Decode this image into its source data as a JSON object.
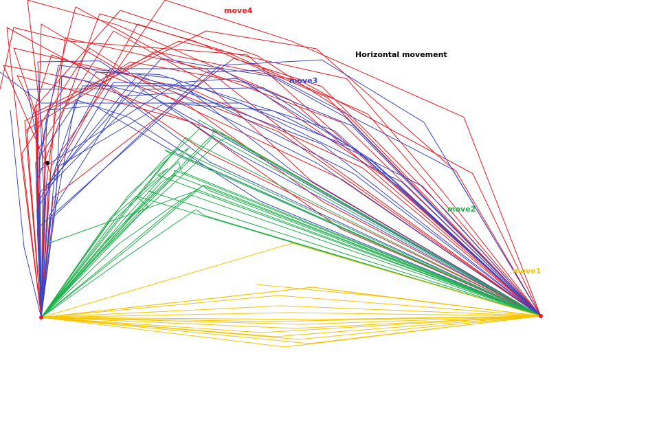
{
  "title": "Horizontal movement",
  "series": [
    {
      "key": "move1",
      "label": "move1",
      "color": "#f5c400"
    },
    {
      "key": "move2",
      "label": "move2",
      "color": "#1fb04c"
    },
    {
      "key": "move3",
      "label": "move3",
      "color": "#3b46c6"
    },
    {
      "key": "move4",
      "label": "move4",
      "color": "#e8191f"
    }
  ],
  "markers": {
    "endpoint_color": "#e8191f",
    "point_color": "#000000"
  }
}
